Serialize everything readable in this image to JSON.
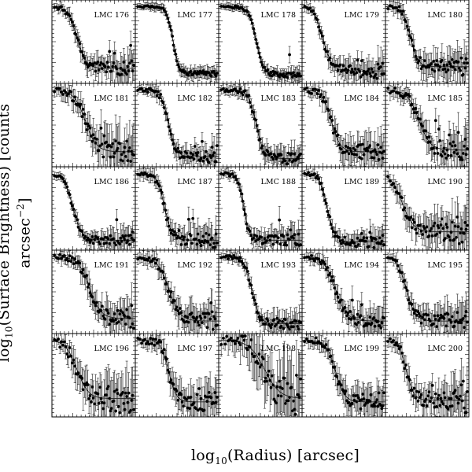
{
  "y_axis": {
    "prefix": "log",
    "sub": "10",
    "mid": "(Surface Brightness) [counts arcsec",
    "sup": "−2",
    "suffix": "]"
  },
  "x_axis": {
    "prefix": "log",
    "sub": "10",
    "mid": "(Radius) [arcsec]"
  },
  "chart_data": {
    "type": "scatter",
    "layout": "5x5 small-multiples grid of radial surface brightness profiles with King-profile fit curves",
    "grid": false,
    "panels": [
      {
        "label": "LMC 176",
        "core": 0.3,
        "width": 0.12,
        "bg": 0.18,
        "noise": 0.05
      },
      {
        "label": "LMC 177",
        "core": 0.45,
        "width": 0.08,
        "bg": 0.12,
        "noise": 0.02
      },
      {
        "label": "LMC 178",
        "core": 0.45,
        "width": 0.1,
        "bg": 0.1,
        "noise": 0.02
      },
      {
        "label": "LMC 179",
        "core": 0.25,
        "width": 0.12,
        "bg": 0.15,
        "noise": 0.05
      },
      {
        "label": "LMC 180",
        "core": 0.3,
        "width": 0.1,
        "bg": 0.2,
        "noise": 0.06
      },
      {
        "label": "LMC 181",
        "core": 0.4,
        "width": 0.15,
        "bg": 0.18,
        "noise": 0.08
      },
      {
        "label": "LMC 182",
        "core": 0.4,
        "width": 0.1,
        "bg": 0.12,
        "noise": 0.04
      },
      {
        "label": "LMC 183",
        "core": 0.45,
        "width": 0.1,
        "bg": 0.1,
        "noise": 0.04
      },
      {
        "label": "LMC 184",
        "core": 0.35,
        "width": 0.12,
        "bg": 0.18,
        "noise": 0.06
      },
      {
        "label": "LMC 185",
        "core": 0.4,
        "width": 0.15,
        "bg": 0.2,
        "noise": 0.07
      },
      {
        "label": "LMC 186",
        "core": 0.25,
        "width": 0.12,
        "bg": 0.12,
        "noise": 0.04
      },
      {
        "label": "LMC 187",
        "core": 0.35,
        "width": 0.1,
        "bg": 0.12,
        "noise": 0.05
      },
      {
        "label": "LMC 188",
        "core": 0.3,
        "width": 0.08,
        "bg": 0.12,
        "noise": 0.04
      },
      {
        "label": "LMC 189",
        "core": 0.3,
        "width": 0.1,
        "bg": 0.1,
        "noise": 0.04
      },
      {
        "label": "LMC 190",
        "core": 0.2,
        "width": 0.15,
        "bg": 0.22,
        "noise": 0.08
      },
      {
        "label": "LMC 191",
        "core": 0.45,
        "width": 0.15,
        "bg": 0.18,
        "noise": 0.06
      },
      {
        "label": "LMC 192",
        "core": 0.4,
        "width": 0.15,
        "bg": 0.15,
        "noise": 0.06
      },
      {
        "label": "LMC 193",
        "core": 0.4,
        "width": 0.1,
        "bg": 0.12,
        "noise": 0.04
      },
      {
        "label": "LMC 194",
        "core": 0.4,
        "width": 0.15,
        "bg": 0.15,
        "noise": 0.05
      },
      {
        "label": "LMC 195",
        "core": 0.25,
        "width": 0.12,
        "bg": 0.15,
        "noise": 0.06
      },
      {
        "label": "LMC 196",
        "core": 0.3,
        "width": 0.15,
        "bg": 0.22,
        "noise": 0.1
      },
      {
        "label": "LMC 197",
        "core": 0.4,
        "width": 0.1,
        "bg": 0.18,
        "noise": 0.07
      },
      {
        "label": "LMC 198",
        "core": 0.55,
        "width": 0.2,
        "bg": 0.22,
        "noise": 0.12
      },
      {
        "label": "LMC 199",
        "core": 0.4,
        "width": 0.12,
        "bg": 0.18,
        "noise": 0.06
      },
      {
        "label": "LMC 200",
        "core": 0.25,
        "width": 0.1,
        "bg": 0.2,
        "noise": 0.08
      }
    ]
  }
}
